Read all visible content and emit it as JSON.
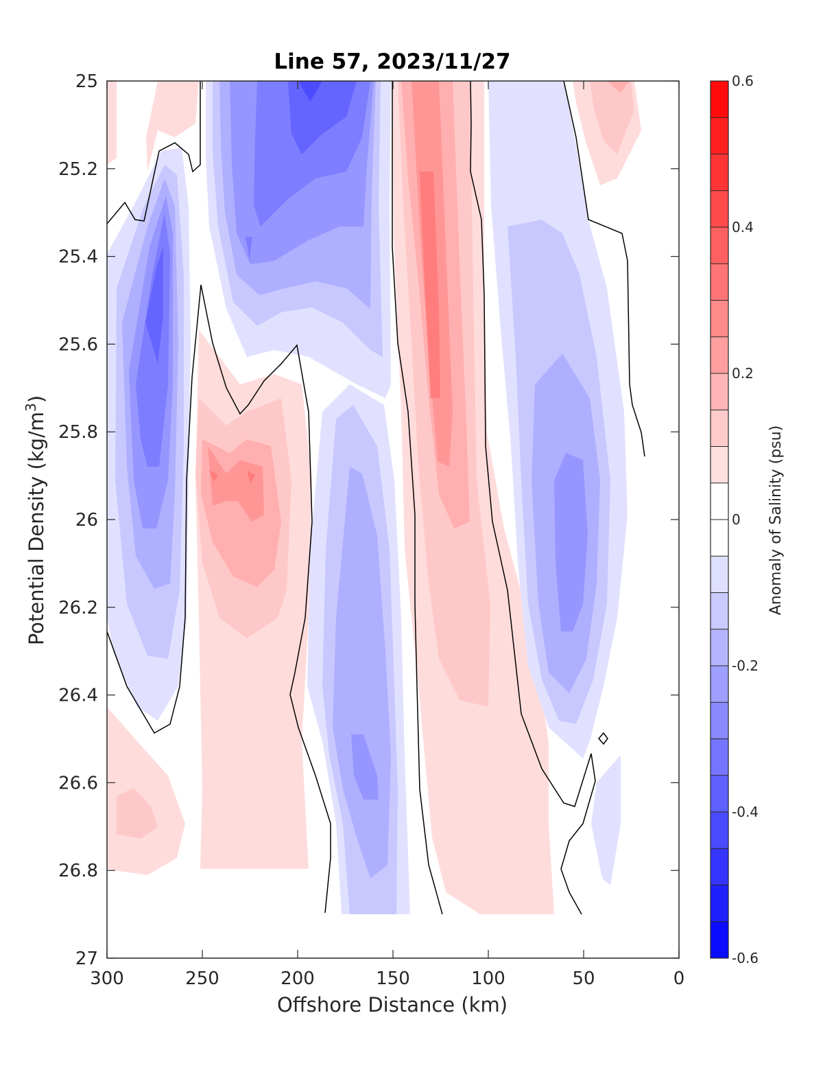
{
  "chart_data": {
    "type": "heatmap",
    "title": "Line 57, 2023/11/27",
    "xlabel": "Offshore Distance (km)",
    "ylabel_main": "Potential Density (kg/m",
    "ylabel_sup": "3",
    "ylabel_end": ")",
    "xlim": [
      300,
      0
    ],
    "ylim": [
      25,
      27
    ],
    "x_reversed": true,
    "y_reversed": true,
    "xticks": [
      "300",
      "250",
      "200",
      "150",
      "100",
      "50",
      "0"
    ],
    "xtick_values": [
      300,
      250,
      200,
      150,
      100,
      50,
      0
    ],
    "yticks": [
      "25",
      "25.2",
      "25.4",
      "25.6",
      "25.8",
      "26",
      "26.2",
      "26.4",
      "26.6",
      "26.8",
      "27"
    ],
    "ytick_values": [
      25,
      25.2,
      25.4,
      25.6,
      25.8,
      26,
      26.2,
      26.4,
      26.6,
      26.8,
      27
    ],
    "colorbar": {
      "label": "Anomaly of Salinity (psu)",
      "range": [
        -0.6,
        0.6
      ],
      "step": 0.05,
      "tick_labels": [
        "0.6",
        "0.4",
        "0.2",
        "0",
        "-0.2",
        "-0.4",
        "-0.6"
      ],
      "tick_values": [
        0.6,
        0.4,
        0.2,
        0,
        -0.2,
        -0.4,
        -0.6
      ],
      "neg_color": "#0000ff",
      "pos_color": "#ff0000",
      "zero_color": "#ffffff"
    },
    "contour_line_level": 0,
    "grid": false,
    "features": [
      {
        "name": "Negative anomaly near 275 km",
        "x": 277,
        "y": 25.55,
        "value": -0.3
      },
      {
        "name": "Negative anomaly near 195 km, top",
        "x": 195,
        "y": 25.05,
        "value": -0.45
      },
      {
        "name": "Negative anomaly near 165 km, deep",
        "x": 165,
        "y": 26.6,
        "value": -0.3
      },
      {
        "name": "Negative anomaly near 60 km",
        "x": 57,
        "y": 26.1,
        "value": -0.25
      },
      {
        "name": "Positive anomaly near 135 km",
        "x": 133,
        "y": 25.4,
        "value": 0.3
      },
      {
        "name": "Positive anomaly near 235 km",
        "x": 238,
        "y": 25.95,
        "value": 0.2
      },
      {
        "name": "Positive anomaly near 30 km, top",
        "x": 30,
        "y": 25.05,
        "value": 0.15
      },
      {
        "name": "Positive anomaly near 280 km, deep",
        "x": 282,
        "y": 26.7,
        "value": 0.1
      }
    ]
  }
}
